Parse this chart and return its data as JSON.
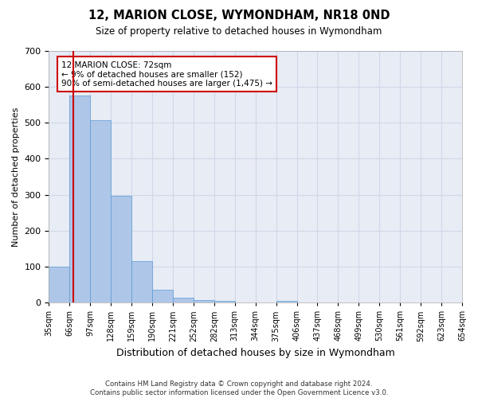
{
  "title1": "12, MARION CLOSE, WYMONDHAM, NR18 0ND",
  "title2": "Size of property relative to detached houses in Wymondham",
  "xlabel": "Distribution of detached houses by size in Wymondham",
  "ylabel": "Number of detached properties",
  "footnote": "Contains HM Land Registry data © Crown copyright and database right 2024.\nContains public sector information licensed under the Open Government Licence v3.0.",
  "categories": [
    "35sqm",
    "66sqm",
    "97sqm",
    "128sqm",
    "159sqm",
    "190sqm",
    "221sqm",
    "252sqm",
    "282sqm",
    "313sqm",
    "344sqm",
    "375sqm",
    "406sqm",
    "437sqm",
    "468sqm",
    "499sqm",
    "530sqm",
    "561sqm",
    "592sqm",
    "623sqm",
    "654sqm"
  ],
  "bar_values": [
    100,
    575,
    507,
    298,
    115,
    35,
    14,
    8,
    5,
    0,
    0,
    5,
    0,
    0,
    0,
    0,
    0,
    0,
    0,
    0
  ],
  "bar_color": "#aec6e8",
  "bar_edge_color": "#5b9bd5",
  "grid_color": "#d0d8e8",
  "background_color": "#e8ecf5",
  "annotation_text": "12 MARION CLOSE: 72sqm\n← 9% of detached houses are smaller (152)\n90% of semi-detached houses are larger (1,475) →",
  "annotation_box_color": "#ffffff",
  "annotation_border_color": "#cc0000",
  "ylim": [
    0,
    700
  ],
  "yticks": [
    0,
    100,
    200,
    300,
    400,
    500,
    600,
    700
  ]
}
